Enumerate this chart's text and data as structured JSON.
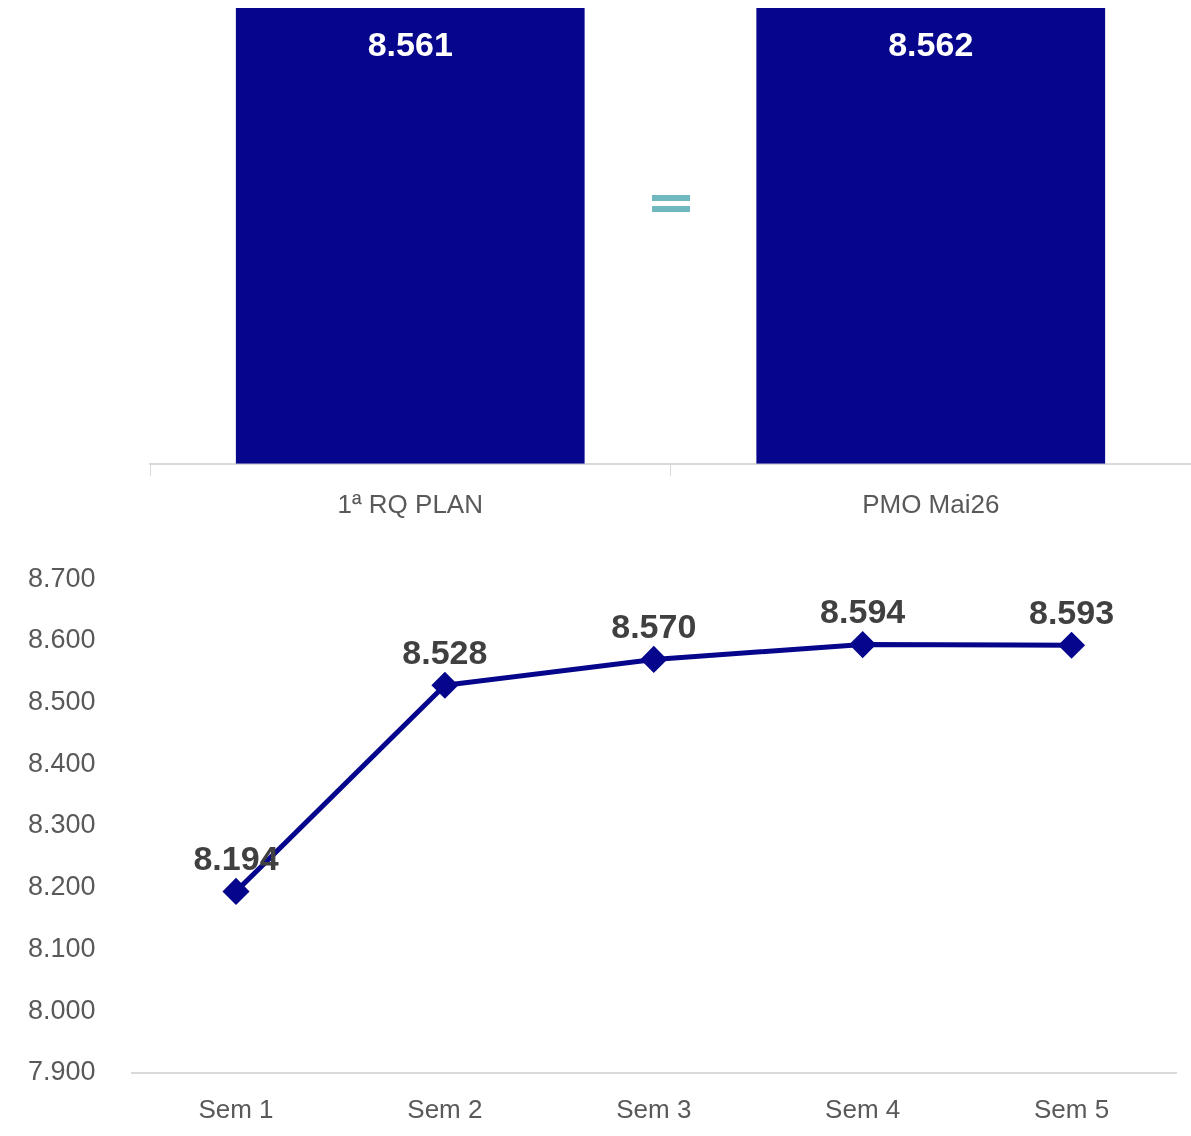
{
  "chart_data": [
    {
      "type": "bar",
      "categories": [
        "1ª RQ PLAN",
        "PMO Mai26"
      ],
      "values": [
        8561,
        8562
      ],
      "color": "#06068c",
      "value_labels": [
        "8.561",
        "8.562"
      ],
      "grid": false
    },
    {
      "type": "line",
      "categories": [
        "Sem 1",
        "Sem 2",
        "Sem 3",
        "Sem 4",
        "Sem 5"
      ],
      "values": [
        8194,
        8528,
        8570,
        8594,
        8593
      ],
      "color": "#06068c",
      "value_labels": [
        "8.194",
        "8.528",
        "8.570",
        "8.594",
        "8.593"
      ],
      "marker": "diamond",
      "line_style": "solid",
      "grid": false,
      "ylim": [
        7900,
        8700
      ],
      "yticks": [
        {
          "value": 7900,
          "label": "7.900"
        },
        {
          "value": 8000,
          "label": "8.000"
        },
        {
          "value": 8100,
          "label": "8.100"
        },
        {
          "value": 8200,
          "label": "8.200"
        },
        {
          "value": 8300,
          "label": "8.300"
        },
        {
          "value": 8400,
          "label": "8.400"
        },
        {
          "value": 8500,
          "label": "8.500"
        },
        {
          "value": 8600,
          "label": "8.600"
        },
        {
          "value": 8700,
          "label": "8.700"
        }
      ]
    }
  ]
}
